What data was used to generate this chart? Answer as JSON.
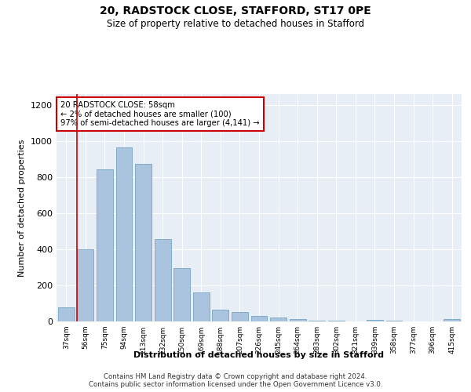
{
  "title1": "20, RADSTOCK CLOSE, STAFFORD, ST17 0PE",
  "title2": "Size of property relative to detached houses in Stafford",
  "xlabel": "Distribution of detached houses by size in Stafford",
  "ylabel": "Number of detached properties",
  "categories": [
    "37sqm",
    "56sqm",
    "75sqm",
    "94sqm",
    "113sqm",
    "132sqm",
    "150sqm",
    "169sqm",
    "188sqm",
    "207sqm",
    "226sqm",
    "245sqm",
    "264sqm",
    "283sqm",
    "302sqm",
    "321sqm",
    "339sqm",
    "358sqm",
    "377sqm",
    "396sqm",
    "415sqm"
  ],
  "values": [
    80,
    400,
    845,
    965,
    875,
    455,
    295,
    160,
    65,
    50,
    32,
    22,
    15,
    5,
    5,
    0,
    10,
    5,
    0,
    0,
    15
  ],
  "bar_color": "#aac4e0",
  "bar_edge_color": "#6699bb",
  "highlight_index": 1,
  "highlight_line_color": "#cc0000",
  "annotation_line1": "20 RADSTOCK CLOSE: 58sqm",
  "annotation_line2": "← 2% of detached houses are smaller (100)",
  "annotation_line3": "97% of semi-detached houses are larger (4,141) →",
  "annotation_box_color": "#ffffff",
  "annotation_box_edge_color": "#cc0000",
  "ylim": [
    0,
    1260
  ],
  "yticks": [
    0,
    200,
    400,
    600,
    800,
    1000,
    1200
  ],
  "background_color": "#e8eef5",
  "footer1": "Contains HM Land Registry data © Crown copyright and database right 2024.",
  "footer2": "Contains public sector information licensed under the Open Government Licence v3.0."
}
